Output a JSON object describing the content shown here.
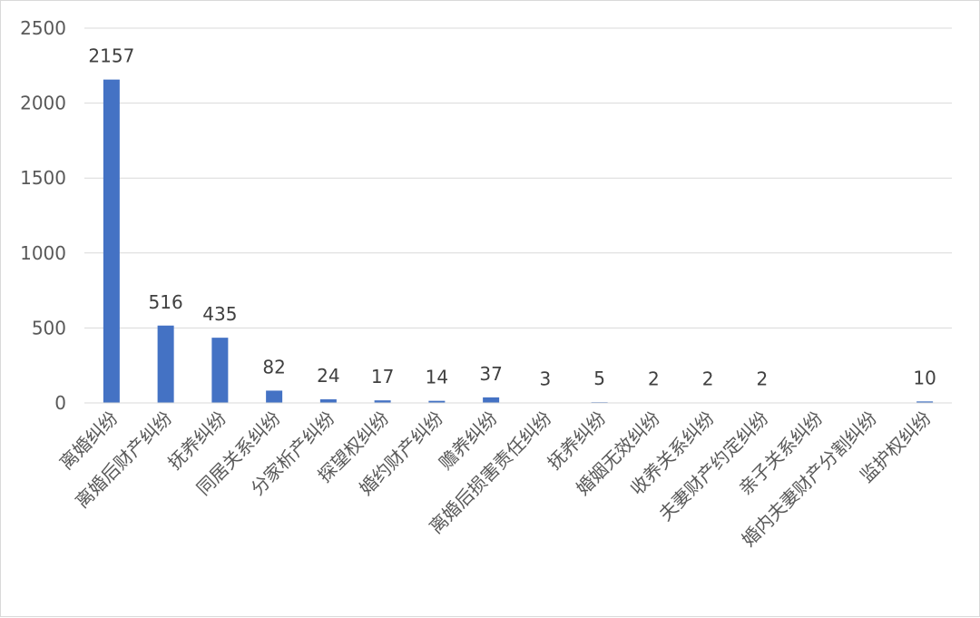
{
  "chart_data": {
    "type": "bar",
    "categories": [
      "离婚纠纷",
      "离婚后财产纠纷",
      "抚养纠纷",
      "同居关系纠纷",
      "分家析产纠纷",
      "探望权纠纷",
      "婚约财产纠纷",
      "赡养纠纷",
      "离婚后损害责任纠纷",
      "抚养纠纷",
      "婚姻无效纠纷",
      "收养关系纠纷",
      "夫妻财产约定纠纷",
      "亲子关系纠纷",
      "婚内夫妻财产分割纠纷",
      "监护权纠纷"
    ],
    "values": [
      2157,
      516,
      435,
      82,
      24,
      17,
      14,
      37,
      3,
      5,
      2,
      2,
      2,
      null,
      null,
      10
    ],
    "data_labels": [
      "2157",
      "516",
      "435",
      "82",
      "24",
      "17",
      "14",
      "37",
      "3",
      "5",
      "2",
      "2",
      "2",
      "",
      "",
      "10"
    ],
    "ylim": [
      0,
      2500
    ],
    "yticks": [
      0,
      500,
      1000,
      1500,
      2000,
      2500
    ],
    "grid": true,
    "legend": "none",
    "bar_color": "#4472c4",
    "grid_color": "#d9d9d9"
  }
}
